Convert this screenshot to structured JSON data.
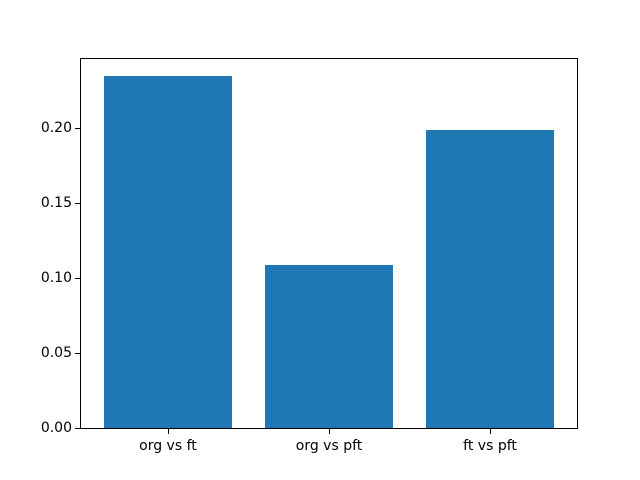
{
  "figure": {
    "background": "#ffffff",
    "spine_color": "#000000",
    "tick_label_color": "#000000"
  },
  "chart_data": {
    "type": "bar",
    "categories": [
      "org vs ft",
      "org vs pft",
      "ft vs pft"
    ],
    "values": [
      0.235,
      0.109,
      0.199
    ],
    "bar_color": "#1f77b4",
    "bar_width_fraction": 0.8,
    "xlim": [
      -0.54,
      2.54
    ],
    "ylim": [
      0,
      0.2464
    ],
    "yticks": [
      0.0,
      0.05,
      0.1,
      0.15,
      0.2
    ],
    "ytick_labels": [
      "0.00",
      "0.05",
      "0.10",
      "0.15",
      "0.20"
    ],
    "grid": false,
    "legend": null
  }
}
